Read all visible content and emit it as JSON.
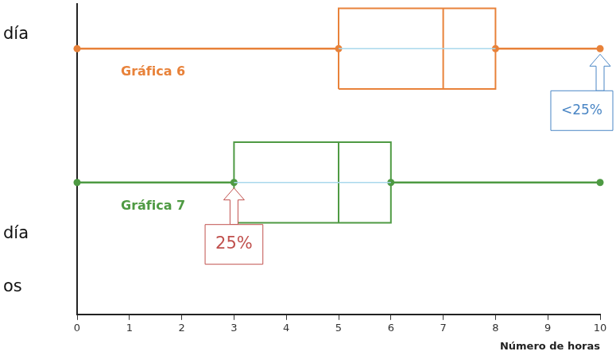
{
  "chart_data": {
    "type": "boxplot",
    "orientation": "horizontal",
    "x_label": "Número de horas",
    "xlim": [
      0,
      10
    ],
    "xticks": [
      0,
      1,
      2,
      3,
      4,
      5,
      6,
      7,
      8,
      9,
      10
    ],
    "series": [
      {
        "name": "Gráfica 6",
        "color": "#e8823a",
        "min": 0,
        "q1": 5,
        "median": 7,
        "q3": 8,
        "max": 10
      },
      {
        "name": "Gráfica 7",
        "color": "#4e9a43",
        "min": 0,
        "q1": 3,
        "median": 5,
        "q3": 6,
        "max": 10
      }
    ],
    "annotations": [
      {
        "text": "<25%",
        "x": 10,
        "series": "Gráfica 6"
      },
      {
        "text": "25%",
        "x": 3,
        "series": "Gráfica 7"
      }
    ],
    "side_labels": [
      "día",
      "día",
      "os"
    ]
  }
}
